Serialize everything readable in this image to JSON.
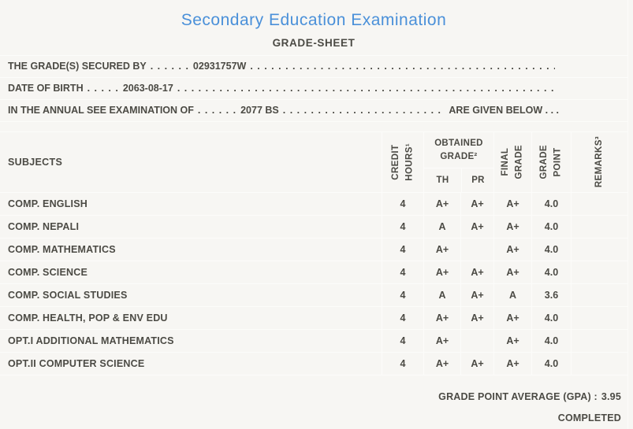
{
  "page": {
    "background": "#f7f6f3",
    "text_color": "#4b4a44",
    "separator_color": "#fcfcfa",
    "accent_blue": "#4a90d9"
  },
  "header": {
    "title": "Secondary Education Examination",
    "subtitle": "GRADE-SHEET"
  },
  "info_lines": [
    {
      "label": "THE GRADE(S) SECURED BY",
      "leader": ". . . . . .",
      "value": "02931757W",
      "trailer": ". . . . . . . . . . . . . . . . . . . . . . . . . . . . . . . . . . . . . . . . . . . . . . . . . . . . . . . . . . . . . . . . . . . . . . . . . . . ."
    },
    {
      "label": "DATE OF BIRTH",
      "leader": ". . . . .",
      "value": "2063-08-17",
      "trailer": ". . . . . . . . . . . . . . . . . . . . . . . . . . . . . . . . . . . . . . . . . . . . . . . . . . . . . . . . . . . . . . . . . . . . . . . . . . . ."
    },
    {
      "label": "IN THE ANNUAL SEE EXAMINATION OF",
      "leader": ". . . . . .",
      "value": "2077 BS",
      "trailer": ". . . . . . . . . . . . . . . . . . . . . . . . . . . . . . . . . . . . . . . . . . . . . . . . . . . . . . . . . . . . . . . . . . . . . . . . . . . .",
      "suffix": "ARE GIVEN BELOW . . ."
    }
  ],
  "table": {
    "headers": {
      "subjects": "SUBJECTS",
      "credit": "CREDIT\nHOURS¹",
      "obtained": "OBTAINED\nGRADE²",
      "th": "TH",
      "pr": "PR",
      "final": "FINAL\nGRADE",
      "grade_point": "GRADE\nPOINT",
      "remarks": "REMARKS³"
    },
    "rows": [
      {
        "subject": "COMP. ENGLISH",
        "credit": "4",
        "th": "A+",
        "pr": "A+",
        "final": "A+",
        "gp": "4.0",
        "remarks": ""
      },
      {
        "subject": "COMP. NEPALI",
        "credit": "4",
        "th": "A",
        "pr": "A+",
        "final": "A+",
        "gp": "4.0",
        "remarks": ""
      },
      {
        "subject": "COMP. MATHEMATICS",
        "credit": "4",
        "th": "A+",
        "pr": "",
        "final": "A+",
        "gp": "4.0",
        "remarks": ""
      },
      {
        "subject": "COMP. SCIENCE",
        "credit": "4",
        "th": "A+",
        "pr": "A+",
        "final": "A+",
        "gp": "4.0",
        "remarks": ""
      },
      {
        "subject": "COMP. SOCIAL STUDIES",
        "credit": "4",
        "th": "A",
        "pr": "A+",
        "final": "A",
        "gp": "3.6",
        "remarks": ""
      },
      {
        "subject": "COMP. HEALTH, POP & ENV EDU",
        "credit": "4",
        "th": "A+",
        "pr": "A+",
        "final": "A+",
        "gp": "4.0",
        "remarks": ""
      },
      {
        "subject": "OPT.I ADDITIONAL MATHEMATICS",
        "credit": "4",
        "th": "A+",
        "pr": "",
        "final": "A+",
        "gp": "4.0",
        "remarks": ""
      },
      {
        "subject": "OPT.II COMPUTER SCIENCE",
        "credit": "4",
        "th": "A+",
        "pr": "A+",
        "final": "A+",
        "gp": "4.0",
        "remarks": ""
      }
    ]
  },
  "footer": {
    "gpa_label": "GRADE POINT AVERAGE (GPA) :",
    "gpa_value": "3.95",
    "status": "COMPLETED"
  }
}
